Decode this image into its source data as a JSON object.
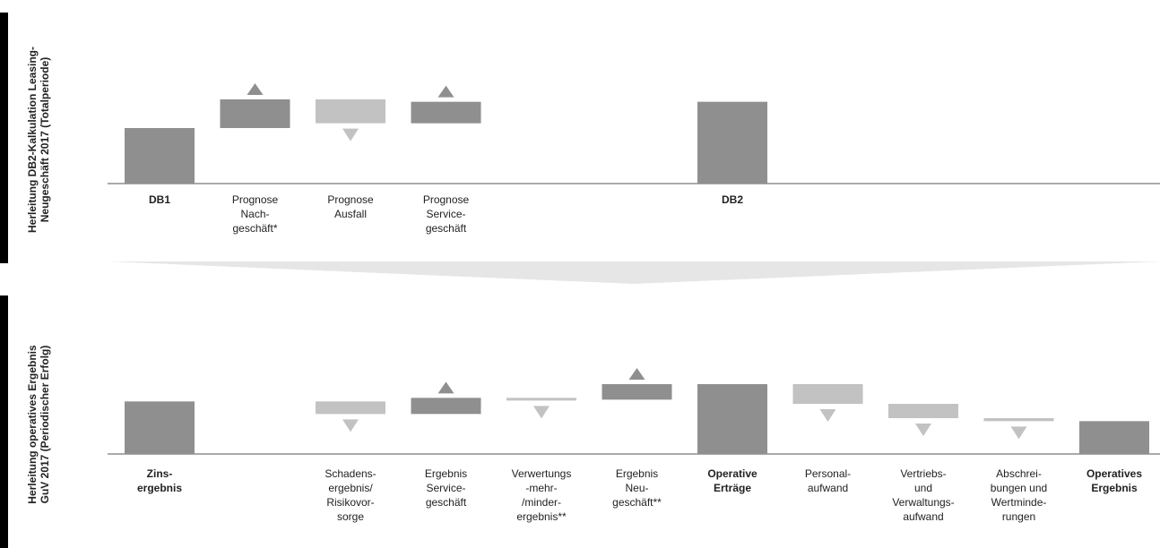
{
  "colors": {
    "dark": "#8f8f8f",
    "light": "#c2c2c2",
    "axis": "#555555",
    "band": "#e6e6e6"
  },
  "chart_data": [
    {
      "type": "waterfall",
      "title": "Herleitung DB2-Kalkulation Leasing-\nNeugeschäft 2017 (Totalperiode)",
      "unit": "relative",
      "categories": [
        {
          "label": "DB1",
          "bold": true
        },
        {
          "label": "Prognose\nNach-\ngeschäft*",
          "bold": false
        },
        {
          "label": "Prognose\nAusfall",
          "bold": false
        },
        {
          "label": "Prognose\nService-\ngeschäft",
          "bold": false
        },
        {
          "label": "",
          "bold": false
        },
        {
          "label": "",
          "bold": false
        },
        {
          "label": "DB2",
          "bold": true
        }
      ],
      "values": [
        {
          "kind": "total",
          "from": 0,
          "to": 93
        },
        {
          "kind": "increase",
          "from": 93,
          "to": 141
        },
        {
          "kind": "decrease",
          "from": 141,
          "to": 101
        },
        {
          "kind": "increase",
          "from": 101,
          "to": 137
        },
        {
          "kind": "none"
        },
        {
          "kind": "none"
        },
        {
          "kind": "total",
          "from": 0,
          "to": 137
        }
      ]
    },
    {
      "type": "waterfall",
      "title": "Herleitung operatives Ergebnis\nGuV 2017 (Periodischer Erfolg)",
      "unit": "relative",
      "categories": [
        {
          "label": "Zins-\nergebnis",
          "bold": true
        },
        {
          "label": "",
          "bold": false
        },
        {
          "label": "Schadens-\nergebnis/\nRisikovor-\nsorge",
          "bold": false
        },
        {
          "label": "Ergebnis\nService-\ngeschäft",
          "bold": false
        },
        {
          "label": "Verwertungs\n-mehr-\n/minder-\nergebnis**",
          "bold": false
        },
        {
          "label": "Ergebnis\nNeu-\ngeschäft**",
          "bold": false
        },
        {
          "label": "Operative\nErträge",
          "bold": true
        },
        {
          "label": "Personal-\naufwand",
          "bold": false
        },
        {
          "label": "Vertriebs-\nund\nVerwaltungs-\naufwand",
          "bold": false
        },
        {
          "label": "Abschrei-\nbungen und\nWertminde-\nrungen",
          "bold": false
        },
        {
          "label": "Operatives\nErgebnis",
          "bold": true
        }
      ],
      "values": [
        {
          "kind": "total",
          "from": 0,
          "to": 88
        },
        {
          "kind": "none"
        },
        {
          "kind": "decrease",
          "from": 88,
          "to": 67
        },
        {
          "kind": "increase",
          "from": 67,
          "to": 94
        },
        {
          "kind": "decrease",
          "from": 94,
          "to": 91
        },
        {
          "kind": "increase",
          "from": 91,
          "to": 117
        },
        {
          "kind": "total",
          "from": 0,
          "to": 117
        },
        {
          "kind": "decrease",
          "from": 117,
          "to": 84
        },
        {
          "kind": "decrease",
          "from": 84,
          "to": 60
        },
        {
          "kind": "decrease",
          "from": 60,
          "to": 55
        },
        {
          "kind": "total",
          "from": 0,
          "to": 55
        }
      ]
    }
  ]
}
